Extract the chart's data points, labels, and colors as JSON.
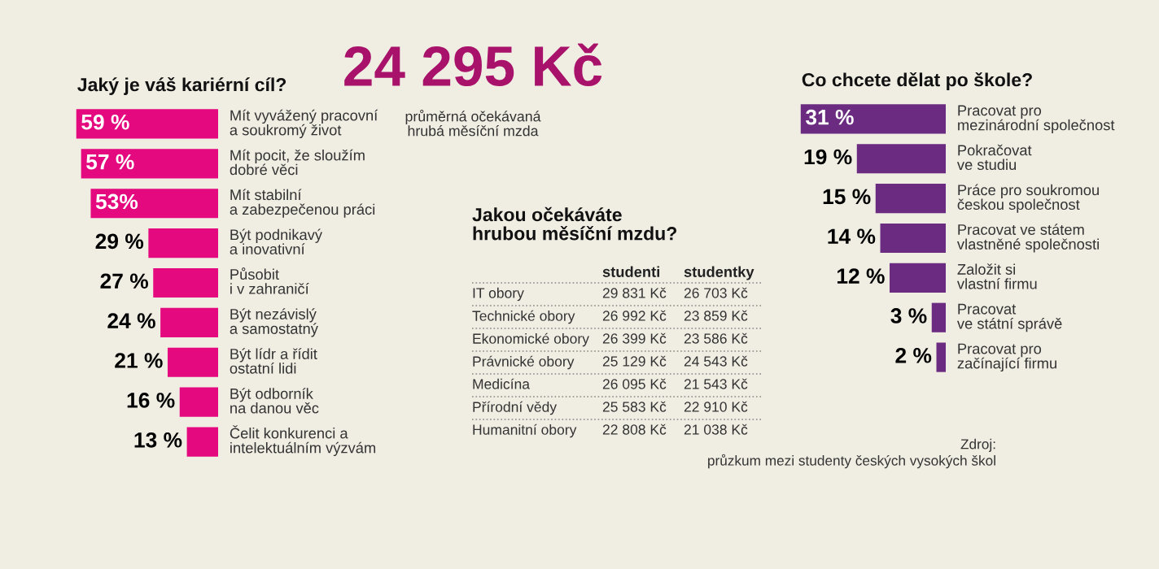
{
  "chart_data": [
    {
      "type": "bar",
      "orientation": "horizontal",
      "title": "Jaký je váš kariérní cíl?",
      "color": "#e5097f",
      "categories": [
        "Mít vyvážený pracovní\na soukromý život",
        "Mít pocit, že sloužím\ndobré věci",
        "Mít stabilní\na zabezpečenou práci",
        "Být podnikavý\na inovativní",
        "Působit\ni v zahraničí",
        "Být nezávislý\na samostatný",
        "Být lídr a řídit\nostatní lidi",
        "Být odborník\nna danou věc",
        "Čelit konkurenci a\nintelektuálním výzvám"
      ],
      "values": [
        59,
        57,
        53,
        29,
        27,
        24,
        21,
        16,
        13
      ],
      "value_labels": [
        "59 %",
        "57 %",
        "53%",
        "29 %",
        "27 %",
        "24 %",
        "21 %",
        "16 %",
        "13 %"
      ]
    },
    {
      "type": "other",
      "title": "24 295 Kč",
      "subtitle": "průměrná očekávaná\nhrubá měsíční mzda",
      "color": "#a8126a"
    },
    {
      "type": "other",
      "title": "Jakou očekáváte\nhrubou měsíční mzdu?",
      "categories": [
        "IT obory",
        "Technické obory",
        "Ekonomické obory",
        "Právnické obory",
        "Medicína",
        "Přírodní vědy",
        "Humanitní obory"
      ],
      "series": [
        {
          "name": "studenti",
          "values": [
            29831,
            26992,
            26399,
            25129,
            26095,
            25583,
            22808
          ],
          "value_labels": [
            "29 831 Kč",
            "26 992 Kč",
            "26 399 Kč",
            "25 129 Kč",
            "26 095 Kč",
            "25 583 Kč",
            "22 808 Kč"
          ]
        },
        {
          "name": "studentky",
          "values": [
            26703,
            23859,
            23586,
            24543,
            21543,
            22910,
            21038
          ],
          "value_labels": [
            "26 703 Kč",
            "23 859 Kč",
            "23 586 Kč",
            "24 543 Kč",
            "21 543 Kč",
            "22 910 Kč",
            "21 038 Kč"
          ]
        }
      ]
    },
    {
      "type": "bar",
      "orientation": "horizontal",
      "title": "Co chcete dělat po škole?",
      "color": "#6a2b80",
      "categories": [
        "Pracovat pro\nmezinárodní společnost",
        "Pokračovat\nve studiu",
        "Práce pro soukromou\nčeskou společnost",
        "Pracovat ve státem\nvlastněné společnosti",
        "Založit si\nvlastní firmu",
        "Pracovat\nve státní správě",
        "Pracovat pro\nzačínající firmu"
      ],
      "values": [
        31,
        19,
        15,
        14,
        12,
        3,
        2
      ],
      "value_labels": [
        "31 %",
        "19 %",
        "15 %",
        "14 %",
        "12 %",
        "3 %",
        "2 %"
      ],
      "annotations": [
        "Zdroj:\nprůzkum mezi studenty českých vysokých škol"
      ]
    }
  ]
}
